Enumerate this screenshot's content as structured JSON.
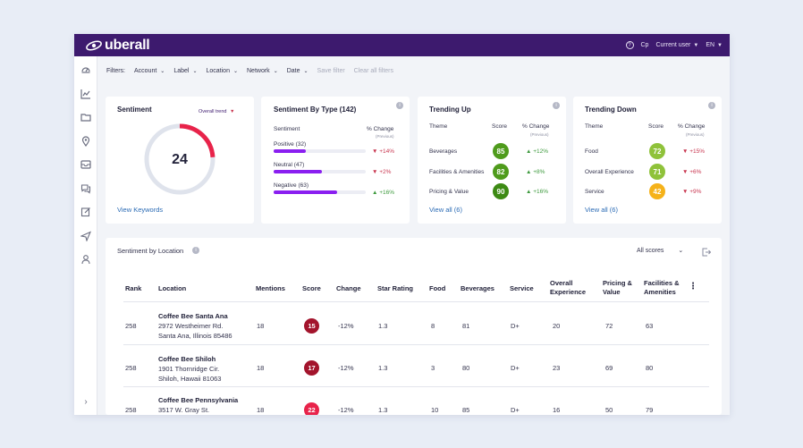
{
  "brand": {
    "name": "uberall",
    "primary": "#3d1a6e"
  },
  "topbar": {
    "help_icon": "question-circle-icon",
    "cp_label": "Cp",
    "user_label": "Current user",
    "lang_label": "EN"
  },
  "filters": {
    "label": "Filters:",
    "items": [
      "Account",
      "Label",
      "Location",
      "Network",
      "Date"
    ],
    "save_label": "Save filter",
    "clear_label": "Clear all filters"
  },
  "sentiment": {
    "title": "Sentiment",
    "trend_label": "Overall trend",
    "value": "24",
    "gauge_fraction": 0.24,
    "link": "View Keywords"
  },
  "by_type": {
    "title": "Sentiment By Type (142)",
    "col_sentiment": "Sentiment",
    "col_change": "% Change",
    "col_change_sub": "(Previous)",
    "rows": [
      {
        "label": "Positive (32)",
        "fraction": 0.35,
        "change": "+14%",
        "dir": "down"
      },
      {
        "label": "Neutral (47)",
        "fraction": 0.52,
        "change": "+2%",
        "dir": "down"
      },
      {
        "label": "Negative (63)",
        "fraction": 0.69,
        "change": "+16%",
        "dir": "up"
      }
    ]
  },
  "trending_up": {
    "title": "Trending Up",
    "col_theme": "Theme",
    "col_score": "Score",
    "col_change": "% Change",
    "col_change_sub": "(Previous)",
    "rows": [
      {
        "theme": "Beverages",
        "score": "85",
        "change": "+12%",
        "color": "#4f9b1c"
      },
      {
        "theme": "Facilities & Amenities",
        "score": "82",
        "change": "+8%",
        "color": "#4f9b1c"
      },
      {
        "theme": "Pricing & Value",
        "score": "90",
        "change": "+16%",
        "color": "#3d8a14"
      }
    ],
    "link": "View all (6)"
  },
  "trending_down": {
    "title": "Trending Down",
    "col_theme": "Theme",
    "col_score": "Score",
    "col_change": "% Change",
    "col_change_sub": "(Previous)",
    "rows": [
      {
        "theme": "Food",
        "score": "72",
        "change": "+15%",
        "color": "#8fc23a"
      },
      {
        "theme": "Overall Experience",
        "score": "71",
        "change": "+6%",
        "color": "#8fc23a"
      },
      {
        "theme": "Service",
        "score": "42",
        "change": "+9%",
        "color": "#f5b21a"
      }
    ],
    "link": "View all (6)"
  },
  "location_table": {
    "title": "Sentiment by Location",
    "score_filter": "All scores",
    "headers": [
      "Rank",
      "Location",
      "Mentions",
      "Score",
      "Change",
      "Star Rating",
      "Food",
      "Beverages",
      "Service",
      "Overall Experience",
      "Pricing & Value",
      "Facilities & Amenities"
    ],
    "rows": [
      {
        "rank": "258",
        "name": "Coffee Bee Santa Ana",
        "addr1": "2972 Westheimer Rd.",
        "addr2": "Santa Ana, Illinois 85486",
        "mentions": "18",
        "score": "15",
        "score_color": "#a3142c",
        "change": "-12%",
        "star": "1.3",
        "food": "8",
        "beverages": "81",
        "service": "D+",
        "overall": "20",
        "pricing": "72",
        "facilities": "63"
      },
      {
        "rank": "258",
        "name": "Coffee Bee Shiloh",
        "addr1": "1901 Thornridge Cir.",
        "addr2": "Shiloh, Hawaii 81063",
        "mentions": "18",
        "score": "17",
        "score_color": "#a3142c",
        "change": "-12%",
        "star": "1.3",
        "food": "3",
        "beverages": "80",
        "service": "D+",
        "overall": "23",
        "pricing": "69",
        "facilities": "80"
      },
      {
        "rank": "258",
        "name": "Coffee Bee Pennsylvania",
        "addr1": "3517 W. Gray St.",
        "addr2": "",
        "mentions": "18",
        "score": "22",
        "score_color": "#e8234a",
        "change": "-12%",
        "star": "1.3",
        "food": "10",
        "beverages": "85",
        "service": "D+",
        "overall": "16",
        "pricing": "50",
        "facilities": "79"
      }
    ]
  }
}
